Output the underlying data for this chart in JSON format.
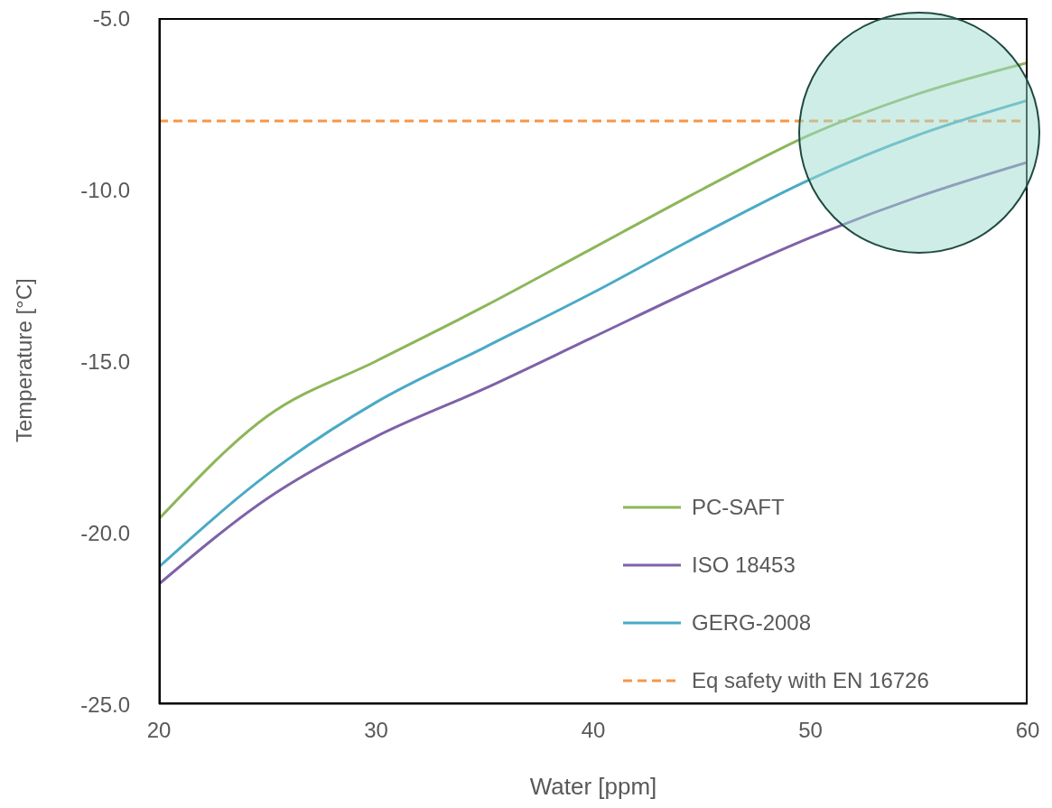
{
  "chart_data": {
    "type": "line",
    "xlabel": "Water [ppm]",
    "ylabel": "Temperature [°C]",
    "x": [
      20,
      25,
      30,
      35,
      40,
      45,
      50,
      55,
      60
    ],
    "series": [
      {
        "name": "PC-SAFT",
        "color": "#8db65a",
        "values": [
          -19.6,
          -16.6,
          -15.0,
          -13.4,
          -11.7,
          -10.0,
          -8.4,
          -7.2,
          -6.3
        ]
      },
      {
        "name": "ISO 18453",
        "color": "#7e62a8",
        "values": [
          -21.5,
          -19.0,
          -17.2,
          -15.8,
          -14.3,
          -12.8,
          -11.4,
          -10.2,
          -9.2
        ]
      },
      {
        "name": "GERG-2008",
        "color": "#4aaac6",
        "values": [
          -21.0,
          -18.3,
          -16.2,
          -14.6,
          -13.0,
          -11.3,
          -9.7,
          -8.4,
          -7.4
        ]
      }
    ],
    "ref_lines": [
      {
        "axis": "y",
        "value": -8.0,
        "label": "Eq safety with EN 16726",
        "color": "#f79646",
        "line_style": "dashed"
      }
    ],
    "xlim": [
      20,
      60
    ],
    "xticks": [
      20,
      30,
      40,
      50,
      60
    ],
    "ylim": [
      -25,
      -5
    ],
    "yticks": [
      {
        "value": -25,
        "label": "-25.0"
      },
      {
        "value": -20,
        "label": "-20.0"
      },
      {
        "value": -15,
        "label": "-15.0"
      },
      {
        "value": -10,
        "label": "-10.0"
      },
      {
        "value": -5,
        "label": "-5.0"
      }
    ],
    "grid": false,
    "legend": "bottom right",
    "marker": "none",
    "line_style": "solid"
  }
}
